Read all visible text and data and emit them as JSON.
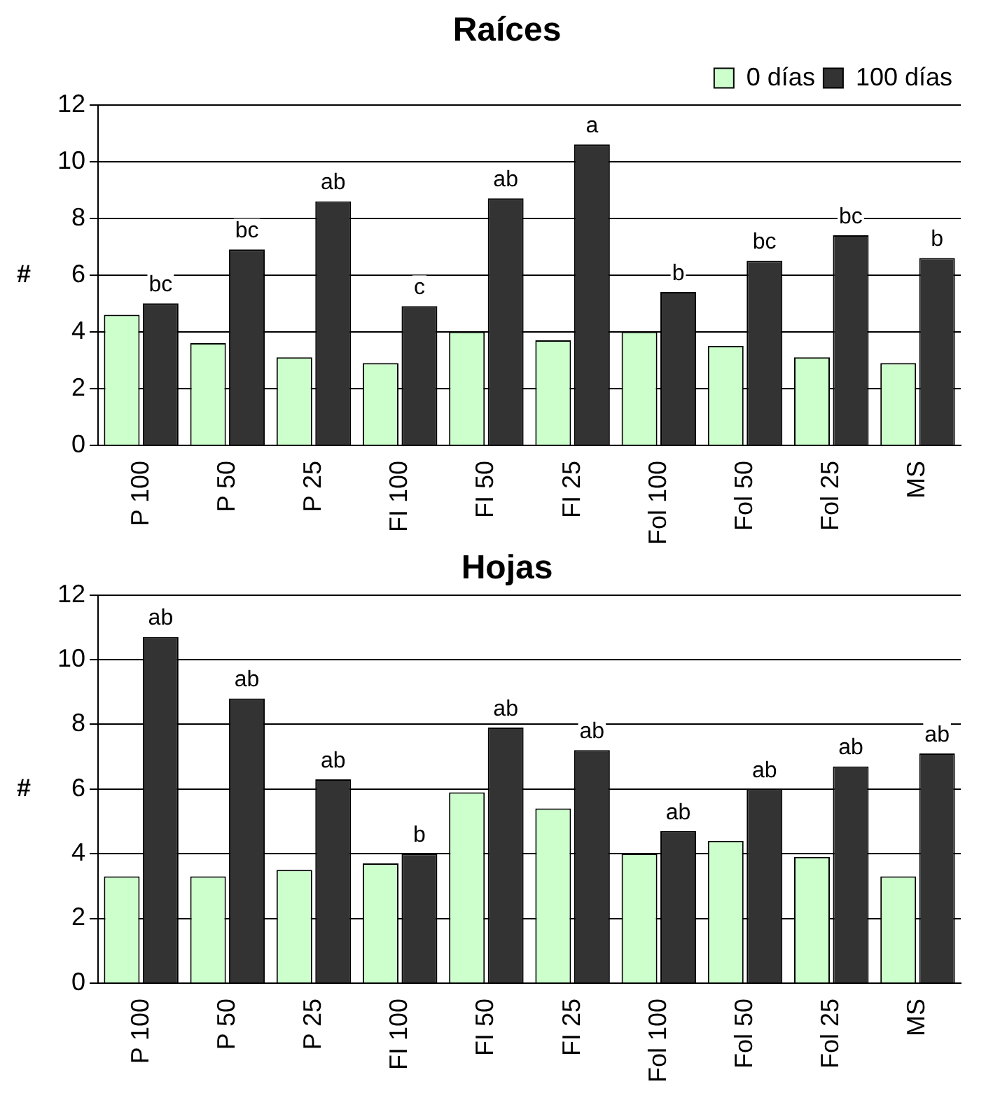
{
  "chart_data": [
    {
      "type": "bar",
      "title": "Raíces",
      "ylabel": "#",
      "categories": [
        "P 100",
        "P 50",
        "P 25",
        "FI 100",
        "FI 50",
        "FI 25",
        "Fol 100",
        "Fol 50",
        "Fol 25",
        "MS"
      ],
      "series": [
        {
          "name": "0 días",
          "color": "#ccffcc",
          "values": [
            4.6,
            3.6,
            3.1,
            2.9,
            4.0,
            3.7,
            4.0,
            3.5,
            3.1,
            2.9
          ]
        },
        {
          "name": "100 días",
          "color": "#333333",
          "values": [
            5.0,
            6.9,
            8.6,
            4.9,
            8.7,
            10.6,
            5.4,
            6.5,
            7.4,
            6.6
          ]
        }
      ],
      "ylim": [
        0,
        12
      ],
      "yticks": [
        0,
        2,
        4,
        6,
        8,
        10,
        12
      ],
      "grid": "y",
      "legend": "top right",
      "annotations": [
        "bc",
        "bc",
        "ab",
        "c",
        "ab",
        "a",
        "b",
        "bc",
        "bc",
        "b"
      ]
    },
    {
      "type": "bar",
      "title": "Hojas",
      "ylabel": "#",
      "categories": [
        "P 100",
        "P 50",
        "P 25",
        "FI 100",
        "FI 50",
        "FI 25",
        "Fol 100",
        "Fol 50",
        "Fol 25",
        "MS"
      ],
      "series": [
        {
          "color": "#ccffcc",
          "values": [
            3.3,
            3.3,
            3.5,
            3.7,
            5.9,
            5.4,
            4.0,
            4.4,
            3.9,
            3.3
          ]
        },
        {
          "color": "#333333",
          "values": [
            10.7,
            8.8,
            6.3,
            4.0,
            7.9,
            7.2,
            4.7,
            6.0,
            6.7,
            7.1
          ]
        }
      ],
      "ylim": [
        0,
        12
      ],
      "yticks": [
        0,
        2,
        4,
        6,
        8,
        10,
        12
      ],
      "grid": "y",
      "annotations": [
        "ab",
        "ab",
        "ab",
        "b",
        "ab",
        "ab",
        "ab",
        "ab",
        "ab",
        "ab"
      ]
    }
  ]
}
